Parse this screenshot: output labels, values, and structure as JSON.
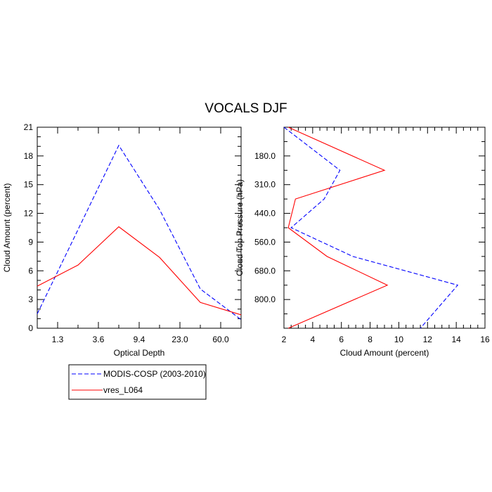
{
  "title": "VOCALS DJF",
  "legend": {
    "placement": "bottom-left",
    "entries": [
      {
        "label": "MODIS-COSP (2003-2010)",
        "color": "#0000ff",
        "dash": "dashed"
      },
      {
        "label": "vres_L064",
        "color": "#ff0000",
        "dash": "solid"
      }
    ]
  },
  "chart_data": [
    {
      "type": "line",
      "xlabel": "Optical Depth",
      "ylabel": "Cloud Amount (percent)",
      "x_ticks": [
        "1.3",
        "3.6",
        "9.4",
        "23.0",
        "60.0"
      ],
      "y_ticks": [
        0,
        3,
        6,
        9,
        12,
        15,
        18,
        21
      ],
      "ylim": [
        0,
        21
      ],
      "x_positions": [
        0,
        0.5,
        1,
        1.5,
        2,
        2.5,
        3,
        3.5,
        4,
        4.5,
        5
      ],
      "x_range": [
        0,
        5
      ],
      "x_category_positions": [
        0.5,
        1.5,
        2.5,
        3.5,
        4.5
      ],
      "series": [
        {
          "name": "MODIS-COSP (2003-2010)",
          "x": [
            0,
            1,
            2,
            3,
            4,
            5
          ],
          "values": [
            1.5,
            10.3,
            19.1,
            12.4,
            4.1,
            0.9
          ]
        },
        {
          "name": "vres_L064",
          "x": [
            0,
            1,
            2,
            3,
            4,
            5
          ],
          "values": [
            4.4,
            6.6,
            10.6,
            7.4,
            2.7,
            1.4
          ]
        }
      ]
    },
    {
      "type": "line",
      "xlabel": "Cloud Amount (percent)",
      "ylabel": "Cloud Top Pressure (hPa)",
      "x_ticks": [
        2,
        4,
        6,
        8,
        10,
        12,
        14,
        16
      ],
      "xlim": [
        2,
        16
      ],
      "y_ticks": [
        "180.0",
        "310.0",
        "440.0",
        "560.0",
        "680.0",
        "800.0"
      ],
      "y_range": [
        0,
        7
      ],
      "y_category_positions": [
        1,
        2,
        3,
        4,
        5,
        6
      ],
      "series": [
        {
          "name": "MODIS-COSP (2003-2010)",
          "x": [
            2.0,
            5.9,
            4.8,
            2.5,
            6.8,
            14.1,
            11.5
          ],
          "y": [
            0,
            1.5,
            2.5,
            3.5,
            4.5,
            5.5,
            7
          ]
        },
        {
          "name": "vres_L064",
          "x": [
            2.3,
            9.0,
            2.8,
            2.3,
            5.0,
            9.2,
            2.3
          ],
          "y": [
            0,
            1.5,
            2.5,
            3.5,
            4.5,
            5.5,
            7
          ]
        }
      ]
    }
  ]
}
